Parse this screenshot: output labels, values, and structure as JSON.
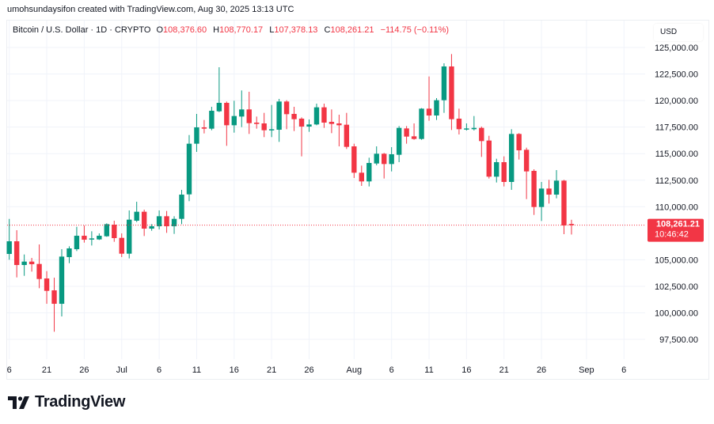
{
  "header": {
    "credit": "umohsundaysifon created with TradingView.com, Aug 30, 2025 13:13 UTC"
  },
  "legend": {
    "symbol": "Bitcoin / U.S. Dollar · 1D · CRYPTO",
    "open_label": "O",
    "open": "108,376.60",
    "high_label": "H",
    "high": "108,770.17",
    "low_label": "L",
    "low": "107,378.13",
    "close_label": "C",
    "close": "108,261.21",
    "change": "−114.75 (−0.11%)"
  },
  "currency": "USD",
  "last_price": {
    "price": "108,261.21",
    "countdown": "10:46:42"
  },
  "branding": {
    "name": "TradingView"
  },
  "colors": {
    "up": "#089981",
    "down": "#f23645",
    "grid": "#f0f3fa",
    "text": "#131722"
  },
  "chart_data": {
    "type": "candlestick",
    "title": "Bitcoin / U.S. Dollar · 1D · CRYPTO",
    "start_date": "2025-06-16",
    "interval": "1D",
    "ylim": [
      97500,
      125000
    ],
    "grid": true,
    "y_ticks": [
      "125,000.00",
      "122,500.00",
      "120,000.00",
      "117,500.00",
      "115,000.00",
      "112,500.00",
      "110,000.00",
      "105,000.00",
      "102,500.00",
      "100,000.00",
      "97,500.00"
    ],
    "y_tick_values": [
      125000,
      122500,
      120000,
      117500,
      115000,
      112500,
      110000,
      105000,
      102500,
      100000,
      97500
    ],
    "x_ticks": [
      {
        "label": "6",
        "day": 0
      },
      {
        "label": "21",
        "day": 5
      },
      {
        "label": "26",
        "day": 10
      },
      {
        "label": "Jul",
        "day": 15
      },
      {
        "label": "6",
        "day": 20
      },
      {
        "label": "11",
        "day": 25
      },
      {
        "label": "16",
        "day": 30
      },
      {
        "label": "21",
        "day": 35
      },
      {
        "label": "26",
        "day": 40
      },
      {
        "label": "Aug",
        "day": 46
      },
      {
        "label": "6",
        "day": 51
      },
      {
        "label": "11",
        "day": 56
      },
      {
        "label": "16",
        "day": 61
      },
      {
        "label": "21",
        "day": 66
      },
      {
        "label": "26",
        "day": 71
      },
      {
        "label": "Sep",
        "day": 77
      },
      {
        "label": "6",
        "day": 82
      }
    ],
    "ohlc": [
      [
        105550,
        108852,
        105006,
        106743
      ],
      [
        106742,
        107785,
        103339,
        104507
      ],
      [
        104507,
        105500,
        103488,
        104830
      ],
      [
        104830,
        105177,
        103886,
        104582
      ],
      [
        104606,
        106444,
        102321,
        103190
      ],
      [
        103240,
        103935,
        100855,
        102072
      ],
      [
        102122,
        103314,
        98222,
        100855
      ],
      [
        100855,
        105997,
        99663,
        105301
      ],
      [
        105251,
        106270,
        104681,
        106072
      ],
      [
        105997,
        108108,
        105823,
        107264
      ],
      [
        107264,
        108232,
        106618,
        106891
      ],
      [
        106940,
        107686,
        106345,
        107015
      ],
      [
        106916,
        107487,
        106866,
        107264
      ],
      [
        107214,
        108431,
        107165,
        108357
      ],
      [
        108307,
        108680,
        106693,
        107041
      ],
      [
        107065,
        107487,
        105252,
        105574
      ],
      [
        105574,
        109649,
        105127,
        108779
      ],
      [
        108680,
        110468,
        108555,
        109525
      ],
      [
        109525,
        109723,
        107239,
        107935
      ],
      [
        107935,
        108357,
        107736,
        108158
      ],
      [
        108158,
        109649,
        107860,
        109102
      ],
      [
        109102,
        109599,
        107537,
        108158
      ],
      [
        108158,
        109102,
        107438,
        108854
      ],
      [
        108854,
        111586,
        108357,
        111139
      ],
      [
        111164,
        116753,
        110519,
        115934
      ],
      [
        115934,
        118741,
        115163,
        117474
      ],
      [
        117474,
        118169,
        116902,
        117350
      ],
      [
        117350,
        119411,
        117201,
        119039
      ],
      [
        118989,
        123137,
        118914,
        119784
      ],
      [
        119784,
        119908,
        115735,
        117672
      ],
      [
        117672,
        119983,
        116977,
        118542
      ],
      [
        118492,
        120951,
        117498,
        119163
      ],
      [
        119163,
        120827,
        116853,
        117871
      ],
      [
        117921,
        118492,
        117350,
        117797
      ],
      [
        117846,
        118840,
        116555,
        117201
      ],
      [
        117201,
        119585,
        116555,
        117300
      ],
      [
        117250,
        120157,
        116108,
        119908
      ],
      [
        119908,
        120032,
        117300,
        118716
      ],
      [
        118741,
        119411,
        117126,
        118244
      ],
      [
        118294,
        118418,
        114742,
        117549
      ],
      [
        117549,
        118219,
        117052,
        117747
      ],
      [
        117747,
        119710,
        117672,
        119362
      ],
      [
        119362,
        119710,
        117424,
        117921
      ],
      [
        117995,
        119163,
        116927,
        117797
      ],
      [
        117846,
        118666,
        115685,
        117672
      ],
      [
        117722,
        118840,
        115437,
        115636
      ],
      [
        115685,
        115934,
        112704,
        113201
      ],
      [
        113201,
        113872,
        111959,
        112381
      ],
      [
        112381,
        114617,
        111909,
        114121
      ],
      [
        114071,
        115685,
        113900,
        114990
      ],
      [
        114990,
        115064,
        112654,
        114021
      ],
      [
        114021,
        115610,
        113325,
        114940
      ],
      [
        114890,
        117598,
        114195,
        117424
      ],
      [
        117374,
        117598,
        115934,
        116604
      ],
      [
        116629,
        117846,
        116306,
        116380
      ],
      [
        116380,
        119287,
        116300,
        119237
      ],
      [
        119237,
        122268,
        118095,
        118591
      ],
      [
        118591,
        120231,
        118169,
        120032
      ],
      [
        120032,
        123510,
        118840,
        123212
      ],
      [
        123212,
        124379,
        117225,
        118244
      ],
      [
        118294,
        119237,
        116803,
        117300
      ],
      [
        117300,
        117846,
        117176,
        117374
      ],
      [
        117300,
        118542,
        117176,
        117424
      ],
      [
        117424,
        117548,
        114691,
        116182
      ],
      [
        116232,
        116679,
        112654,
        112828
      ],
      [
        112828,
        114518,
        112282,
        114195
      ],
      [
        114195,
        114741,
        111909,
        112332
      ],
      [
        112332,
        117300,
        111586,
        116853
      ],
      [
        116853,
        116927,
        114443,
        115313
      ],
      [
        115362,
        115561,
        110717,
        113325
      ],
      [
        113375,
        113524,
        109226,
        109972
      ],
      [
        109972,
        112331,
        108655,
        111710
      ],
      [
        111710,
        112530,
        110294,
        111139
      ],
      [
        111139,
        113449,
        110791,
        112456
      ],
      [
        112456,
        112530,
        107413,
        108233
      ],
      [
        108376.6,
        108770.17,
        107378.13,
        108261.21
      ]
    ],
    "last_close": 108261.21
  }
}
